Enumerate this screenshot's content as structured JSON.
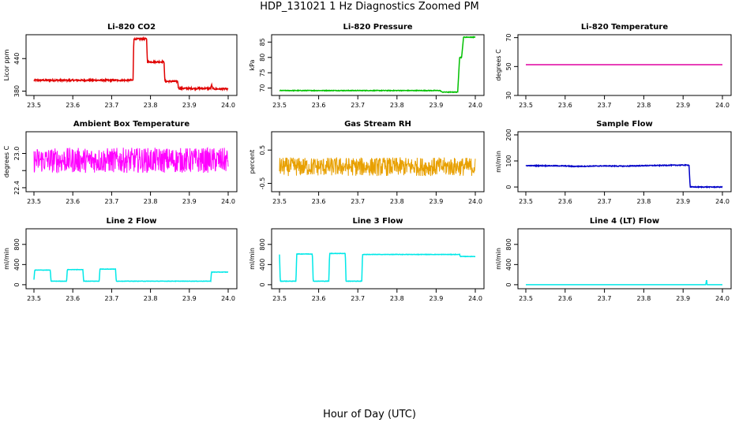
{
  "page": {
    "title": "HDP_131021  1 Hz Diagnostics Zoomed PM",
    "xlabel": "Hour of Day (UTC)"
  },
  "colors": {
    "co2": "#e00000",
    "pressure": "#00c000",
    "temperature": "#e000a0",
    "ambient": "#ff00ff",
    "rh": "#e8a000",
    "sample_flow": "#0000c8",
    "line_flow": "#00e8e8",
    "axes": "#000000"
  },
  "chart_data": [
    {
      "type": "line",
      "title": "Li-820 CO2",
      "ylabel": "Licor ppm",
      "color": "#e00000",
      "xlim": [
        23.5,
        24.0
      ],
      "xticks": [
        23.5,
        23.6,
        23.7,
        23.8,
        23.9,
        24.0
      ],
      "ylim": [
        372,
        484
      ],
      "yticks": [
        380,
        440
      ],
      "extra_ytick_labels": [
        {
          "value": 440,
          "label": "440"
        }
      ],
      "x": [
        23.5,
        23.55,
        23.6,
        23.65,
        23.7,
        23.755,
        23.757,
        23.79,
        23.792,
        23.835,
        23.837,
        23.87,
        23.872,
        23.955,
        23.957,
        23.96,
        23.965,
        24.0
      ],
      "y": [
        400,
        400,
        400,
        400,
        400,
        400,
        476,
        476,
        434,
        434,
        398,
        398,
        385,
        385,
        392,
        385,
        384,
        384
      ],
      "noise": 1.5
    },
    {
      "type": "line",
      "title": "Li-820 Pressure",
      "ylabel": "kPa",
      "color": "#00c000",
      "xlim": [
        23.5,
        24.0
      ],
      "xticks": [
        23.5,
        23.6,
        23.7,
        23.8,
        23.9,
        24.0
      ],
      "ylim": [
        67.6,
        87.4
      ],
      "yticks": [
        70,
        75,
        80,
        85
      ],
      "x": [
        23.5,
        23.91,
        23.915,
        23.955,
        23.96,
        23.965,
        23.97,
        24.0
      ],
      "y": [
        69.2,
        69.2,
        68.7,
        68.7,
        80,
        80,
        86.6,
        86.6
      ],
      "noise": 0.1
    },
    {
      "type": "line",
      "title": "Li-820 Temperature",
      "ylabel": "degrees C",
      "color": "#e000a0",
      "xlim": [
        23.5,
        24.0
      ],
      "xticks": [
        23.5,
        23.6,
        23.7,
        23.8,
        23.9,
        24.0
      ],
      "ylim": [
        30,
        72
      ],
      "yticks": [
        30,
        50,
        70
      ],
      "x": [
        23.5,
        24.0
      ],
      "y": [
        51.3,
        51.3
      ],
      "noise": 0
    },
    {
      "type": "line",
      "title": "Ambient Box Temperature",
      "ylabel": "degrees C",
      "color": "#ff00ff",
      "xlim": [
        23.5,
        24.0
      ],
      "xticks": [
        23.5,
        23.6,
        23.7,
        23.8,
        23.9,
        24.0
      ],
      "ylim": [
        22.33,
        23.38
      ],
      "yticks": [
        22.4,
        22.7,
        23.0
      ],
      "yticklabels": [
        "22.4",
        "",
        "23.0"
      ],
      "x": [
        23.5,
        24.0
      ],
      "y": [
        22.88,
        22.88
      ],
      "noise": 0.22
    },
    {
      "type": "line",
      "title": "Gas Stream RH",
      "ylabel": "percent",
      "color": "#e8a000",
      "xlim": [
        23.5,
        24.0
      ],
      "xticks": [
        23.5,
        23.6,
        23.7,
        23.8,
        23.9,
        24.0
      ],
      "ylim": [
        -0.75,
        1.05
      ],
      "yticks": [
        -0.5,
        0.5
      ],
      "x": [
        23.5,
        24.0
      ],
      "y": [
        0.0,
        0.0
      ],
      "noise": 0.28
    },
    {
      "type": "line",
      "title": "Sample Flow",
      "ylabel": "ml/min",
      "color": "#0000c8",
      "xlim": [
        23.5,
        24.0
      ],
      "xticks": [
        23.5,
        23.6,
        23.7,
        23.8,
        23.9,
        24.0
      ],
      "ylim": [
        -18,
        212
      ],
      "yticks": [
        0,
        100,
        200
      ],
      "x": [
        23.5,
        23.6,
        23.62,
        23.7,
        23.75,
        23.8,
        23.9,
        23.915,
        23.918,
        24.0
      ],
      "y": [
        82,
        81,
        79,
        81,
        80,
        82,
        84,
        84,
        0,
        0
      ],
      "noise": 1.5
    },
    {
      "type": "line",
      "title": "Line 2 Flow",
      "ylabel": "ml/min",
      "color": "#00e8e8",
      "xlim": [
        23.5,
        24.0
      ],
      "xticks": [
        23.5,
        23.6,
        23.7,
        23.8,
        23.9,
        24.0
      ],
      "ylim": [
        -80,
        1110
      ],
      "yticks": [
        0,
        400,
        800
      ],
      "x": [
        23.5,
        23.502,
        23.542,
        23.544,
        23.584,
        23.586,
        23.626,
        23.628,
        23.668,
        23.67,
        23.71,
        23.712,
        23.955,
        23.957,
        24.0
      ],
      "y": [
        100,
        290,
        290,
        70,
        70,
        300,
        300,
        70,
        70,
        310,
        310,
        70,
        70,
        250,
        250
      ],
      "noise": 3
    },
    {
      "type": "line",
      "title": "Line 3 Flow",
      "ylabel": "ml/min",
      "color": "#00e8e8",
      "xlim": [
        23.5,
        24.0
      ],
      "xticks": [
        23.5,
        23.6,
        23.7,
        23.8,
        23.9,
        24.0
      ],
      "ylim": [
        -80,
        1110
      ],
      "yticks": [
        0,
        400,
        800
      ],
      "x": [
        23.5,
        23.502,
        23.542,
        23.544,
        23.584,
        23.586,
        23.626,
        23.628,
        23.668,
        23.67,
        23.71,
        23.712,
        23.96,
        23.962,
        24.0
      ],
      "y": [
        600,
        70,
        70,
        610,
        610,
        70,
        70,
        620,
        620,
        70,
        70,
        600,
        600,
        560,
        560
      ],
      "noise": 4
    },
    {
      "type": "line",
      "title": "Line 4 (LT) Flow",
      "ylabel": "ml/min",
      "color": "#00e8e8",
      "xlim": [
        23.5,
        24.0
      ],
      "xticks": [
        23.5,
        23.6,
        23.7,
        23.8,
        23.9,
        24.0
      ],
      "ylim": [
        -80,
        1110
      ],
      "yticks": [
        0,
        400,
        800
      ],
      "x": [
        23.5,
        23.958,
        23.959,
        23.96,
        23.961,
        24.0
      ],
      "y": [
        0,
        0,
        80,
        80,
        0,
        0
      ],
      "noise": 0
    }
  ]
}
